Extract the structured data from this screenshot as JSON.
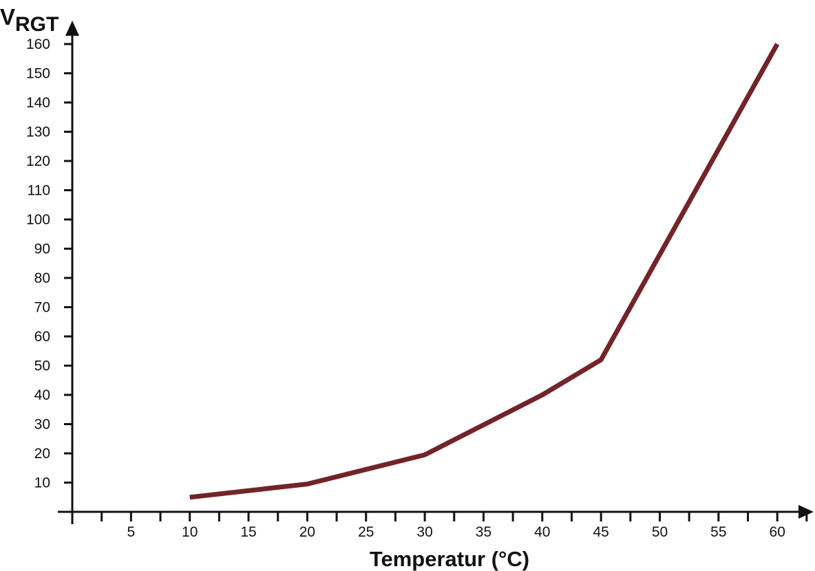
{
  "chart_data": {
    "type": "line",
    "title": "",
    "ylabel": {
      "main": "V",
      "subscript": "RGT"
    },
    "xlabel": "Temperatur (°C)",
    "xlim": [
      0,
      65
    ],
    "ylim": [
      0,
      160
    ],
    "x_ticks": [
      5,
      10,
      15,
      20,
      25,
      30,
      35,
      40,
      45,
      50,
      55,
      60
    ],
    "x_minor_ticks": [
      2.5,
      7.5,
      12.5,
      17.5,
      22.5,
      27.5,
      32.5,
      37.5,
      42.5,
      47.5,
      52.5,
      57.5,
      62.5
    ],
    "y_ticks": [
      10,
      20,
      30,
      40,
      50,
      60,
      70,
      80,
      90,
      100,
      110,
      120,
      130,
      140,
      150,
      160
    ],
    "grid": false,
    "legend": "none",
    "series": [
      {
        "color": "#722428",
        "x": [
          10,
          20,
          30,
          40,
          45,
          60
        ],
        "y": [
          5,
          9.5,
          19.5,
          40,
          52,
          160
        ]
      }
    ]
  }
}
